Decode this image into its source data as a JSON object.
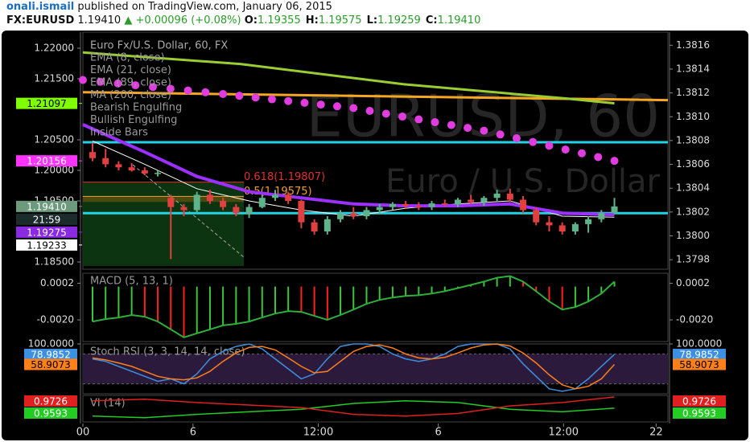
{
  "header": {
    "user": "onali.ismail",
    "published": "published on TradingView.com, January 06, 2015",
    "symbol": "FX:EURUSD",
    "price": "1.19410",
    "change": "▲ +0.00096 (+0.08%)",
    "ohlc": [
      {
        "key": "O:",
        "value": "1.19355"
      },
      {
        "key": "H:",
        "value": "1.19575"
      },
      {
        "key": "L:",
        "value": "1.19259"
      },
      {
        "key": "C:",
        "value": "1.19410"
      }
    ]
  },
  "chart_data": [
    {
      "type": "candlestick",
      "title": "Euro Fx/U.S. Dollar, 60, FX",
      "watermark": [
        "EURUSD, 60",
        "Euro / U.S. Dollar"
      ],
      "studies": [
        "Bearish Engulfing",
        "Bullish Engulfing",
        "Inside Bars"
      ],
      "x": [
        0,
        1,
        2,
        3,
        4,
        5,
        6,
        7,
        8,
        9,
        10,
        11,
        12,
        13,
        14,
        15,
        16,
        17,
        18,
        19,
        20,
        21,
        22,
        23,
        24,
        25,
        26,
        27,
        28,
        29,
        30,
        31,
        32,
        33,
        34,
        35,
        36,
        37,
        38,
        39,
        40
      ],
      "open": [
        1.203,
        1.202,
        1.201,
        1.2005,
        1.2,
        1.1995,
        1.1955,
        1.194,
        1.1935,
        1.196,
        1.195,
        1.194,
        1.1928,
        1.194,
        1.1955,
        1.196,
        1.195,
        1.1915,
        1.19,
        1.192,
        1.193,
        1.1925,
        1.1935,
        1.194,
        1.1945,
        1.1942,
        1.194,
        1.1946,
        1.1944,
        1.1952,
        1.1948,
        1.1955,
        1.1962,
        1.1952,
        1.1935,
        1.1915,
        1.191,
        1.19,
        1.1912,
        1.192,
        1.193
      ],
      "high": [
        1.2045,
        1.2035,
        1.2015,
        1.2012,
        1.2005,
        1.2,
        1.196,
        1.1945,
        1.1965,
        1.1968,
        1.1955,
        1.1945,
        1.1945,
        1.196,
        1.1968,
        1.1965,
        1.1952,
        1.192,
        1.1925,
        1.1935,
        1.194,
        1.194,
        1.1945,
        1.1948,
        1.195,
        1.1948,
        1.195,
        1.1952,
        1.1955,
        1.196,
        1.1958,
        1.1968,
        1.197,
        1.1958,
        1.194,
        1.1925,
        1.1915,
        1.1915,
        1.1925,
        1.1935,
        1.1955
      ],
      "low": [
        1.2015,
        1.2005,
        1.2,
        1.1998,
        1.1992,
        1.199,
        1.1855,
        1.1925,
        1.193,
        1.1945,
        1.1935,
        1.1925,
        1.1922,
        1.1938,
        1.195,
        1.1945,
        1.1905,
        1.1895,
        1.1895,
        1.1915,
        1.192,
        1.192,
        1.1928,
        1.1935,
        1.1938,
        1.1935,
        1.1935,
        1.194,
        1.194,
        1.1945,
        1.1942,
        1.195,
        1.1948,
        1.193,
        1.191,
        1.19,
        1.1895,
        1.1895,
        1.1898,
        1.1915,
        1.1928
      ],
      "close": [
        1.202,
        1.201,
        1.2005,
        1.2,
        1.1995,
        1.1996,
        1.194,
        1.1935,
        1.196,
        1.195,
        1.194,
        1.193,
        1.194,
        1.1955,
        1.196,
        1.195,
        1.1915,
        1.19,
        1.192,
        1.193,
        1.1925,
        1.1935,
        1.194,
        1.1945,
        1.1942,
        1.194,
        1.1946,
        1.1944,
        1.1952,
        1.1948,
        1.1955,
        1.1962,
        1.1952,
        1.1935,
        1.1915,
        1.191,
        1.19,
        1.1912,
        1.192,
        1.193,
        1.1941
      ],
      "up_color": "#5fb38a",
      "down_color": "#e04040",
      "series": [
        {
          "name": "EMA (8, close)",
          "color": "#ffffff",
          "width": 1,
          "x": [
            0,
            4,
            8,
            12,
            16,
            20,
            24,
            28,
            32,
            36,
            40
          ],
          "values": [
            1.2048,
            1.201,
            1.197,
            1.195,
            1.1935,
            1.1925,
            1.1938,
            1.1945,
            1.195,
            1.1925,
            1.19233
          ]
        },
        {
          "name": "EMA (21, close)",
          "color": "#9b30ff",
          "width": 4,
          "x": [
            -0.74,
            4,
            8,
            12,
            16,
            20,
            24,
            28,
            32,
            36,
            40
          ],
          "values": [
            1.2075,
            1.203,
            1.199,
            1.1965,
            1.1955,
            1.1945,
            1.1942,
            1.1942,
            1.1945,
            1.193,
            1.19275
          ]
        },
        {
          "name": "EMA (89, close)",
          "color": "#e03ce0",
          "style": "dots",
          "x": [
            -0.74,
            10,
            20,
            30,
            40
          ],
          "values": [
            1.2148,
            1.2125,
            1.2102,
            1.2065,
            1.20156
          ]
        },
        {
          "name": "MA (200, close)",
          "color": "#9acd32",
          "width": 3,
          "x": [
            -0.74,
            11.4,
            23.8,
            36.1,
            40
          ],
          "values": [
            1.2193,
            1.2174,
            1.2141,
            1.2118,
            1.21097
          ]
        }
      ],
      "lines": [
        {
          "color": "#f5a623",
          "x": [
            -0.74,
            44.1
          ],
          "values": [
            1.2128,
            1.2115
          ]
        }
      ],
      "hlines": [
        1.2046,
        1.193
      ],
      "hline_color": "#22d3e6",
      "fib": [
        {
          "label": "0.618(1.19807)",
          "value": 1.19807,
          "color": "#e03030"
        },
        {
          "label": "0.5(1.19575)",
          "value": 1.19575,
          "color": "#f0a030"
        }
      ],
      "price_labels": [
        {
          "value": 1.21097,
          "color": "#7fff00"
        },
        {
          "value": 1.20156,
          "color": "#ff33ff"
        },
        {
          "value": 1.1941,
          "label": "1.19410",
          "color": "#6d9a7d"
        },
        {
          "label": "21:59",
          "color": "#1c2b2b"
        },
        {
          "value": 1.19275,
          "color": "#8a2be2"
        },
        {
          "value": 1.19233,
          "color": "#ffffff"
        }
      ],
      "xlim": [
        -0.74,
        44.1
      ],
      "xticks": [
        {
          "value": -0.74,
          "label": "00"
        },
        {
          "value": 7.7,
          "label": "6"
        },
        {
          "value": 17.3,
          "label": "12:00"
        },
        {
          "value": 26.5,
          "label": "6"
        },
        {
          "value": 36.1,
          "label": "12:00"
        },
        {
          "value": 43.2,
          "label": "22"
        }
      ],
      "ylim": [
        1.18382,
        1.22263
      ],
      "yticks": [
        {
          "value": 1.22,
          "label": "1.22000"
        },
        {
          "value": 1.215,
          "label": "1.21500"
        },
        {
          "value": 1.205,
          "label": "1.20500"
        },
        {
          "value": 1.2,
          "label": "1.20000"
        },
        {
          "value": 1.195,
          "label": "1.19500"
        },
        {
          "value": 1.185,
          "label": "1.18500"
        }
      ],
      "y2lim": [
        1.37972,
        1.38171
      ],
      "y2ticks": [
        1.3816,
        1.3814,
        1.3812,
        {
          "value": 1.381,
          "label": "1.3810"
        },
        1.3808,
        1.3806,
        1.3804,
        1.3802,
        {
          "value": 1.38,
          "label": "1.3800"
        },
        1.3798
      ]
    },
    {
      "type": "macd",
      "title": "MACD (5, 13, 1)",
      "values": [
        -0.0021,
        -0.00195,
        -0.00186,
        -0.00171,
        -0.00181,
        -0.0021,
        -0.00257,
        -0.00305,
        -0.00281,
        -0.00257,
        -0.00233,
        -0.00224,
        -0.0021,
        -0.00186,
        -0.00162,
        -0.00147,
        -0.00152,
        -0.00176,
        -0.002,
        -0.00171,
        -0.00138,
        -0.00104,
        -0.0008,
        -0.00066,
        -0.00056,
        -0.00052,
        -0.00042,
        -0.00028,
        -9e-05,
        0.0001,
        0.0003,
        0.00053,
        0.00063,
        0.0003,
        -0.00028,
        -0.0009,
        -0.00138,
        -0.00123,
        -0.0009,
        -0.00042,
        0.0003
      ],
      "up_color": "#3cc43c",
      "down_color": "#ff2020",
      "line_color": "#2fae3a",
      "ylim": [
        -0.0033,
        0.0008
      ],
      "yticks": [
        0.0002,
        {
          "value": -0.002,
          "label": "-0.0020"
        }
      ]
    },
    {
      "type": "line",
      "title": "Stoch RSI (3, 3, 14, 14, close)",
      "series": [
        {
          "color": "#3d8fe0",
          "values": [
            70,
            65,
            55,
            45,
            35,
            25,
            30,
            20,
            40,
            70,
            85,
            95,
            100,
            90,
            70,
            50,
            30,
            40,
            70,
            95,
            100,
            100,
            95,
            80,
            70,
            65,
            70,
            80,
            95,
            100,
            100,
            100,
            90,
            60,
            35,
            10,
            5,
            10,
            30,
            55,
            78.9852
          ]
        },
        {
          "color": "#ff7f1a",
          "values": [
            72,
            68,
            62,
            55,
            45,
            35,
            30,
            28,
            32,
            45,
            65,
            82,
            93,
            95,
            88,
            72,
            55,
            42,
            45,
            65,
            85,
            95,
            98,
            92,
            80,
            72,
            70,
            73,
            82,
            92,
            98,
            100,
            96,
            82,
            62,
            38,
            18,
            10,
            15,
            30,
            58.9073
          ]
        }
      ],
      "bands": [
        20,
        80
      ],
      "band_color": "#2c1a3c",
      "ylim": [
        0,
        100
      ],
      "yticks": [
        {
          "value": 100,
          "label": "100.0000"
        }
      ]
    },
    {
      "type": "line",
      "title": "VI (14)",
      "series": [
        {
          "color": "#22cc22",
          "x": [
            0,
            4,
            8,
            12,
            16,
            20,
            24,
            28,
            32,
            36,
            40
          ],
          "values": [
            0.95,
            0.948,
            0.952,
            0.955,
            0.958,
            0.965,
            0.968,
            0.966,
            0.958,
            0.955,
            0.9593
          ]
        },
        {
          "color": "#e02020",
          "x": [
            0,
            4,
            8,
            12,
            16,
            20,
            24,
            28,
            32,
            36,
            40
          ],
          "values": [
            0.968,
            0.97,
            0.966,
            0.963,
            0.96,
            0.952,
            0.95,
            0.953,
            0.962,
            0.966,
            0.9726
          ]
        }
      ],
      "ylim": [
        0.943,
        0.9745
      ],
      "yticks": []
    }
  ]
}
